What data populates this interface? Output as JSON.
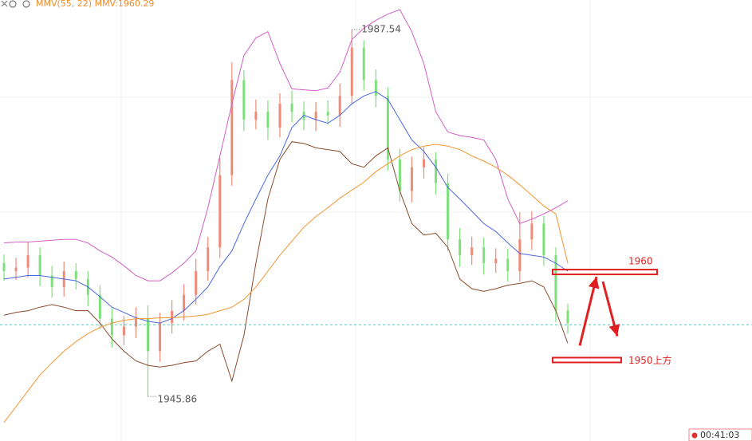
{
  "chart_data": {
    "type": "candlestick",
    "title": "MMV(55, 22) MMV:1960.29",
    "ylim": [
      1940.8,
      1990.9
    ],
    "candles": {
      "up_color": "#f08a78",
      "down_color": "#7de07a",
      "open": [
        1961.0,
        1960.1,
        1960.5,
        1961.9,
        1959.6,
        1958.3,
        1960.1,
        1959.2,
        1957.4,
        1954.7,
        1952.8,
        1953.8,
        1954.7,
        1951.0,
        1954.2,
        1955.6,
        1957.4,
        1960.1,
        1962.8,
        1971.0,
        1981.8,
        1977.3,
        1978.2,
        1976.4,
        1979.1,
        1978.2,
        1977.3,
        1978.2,
        1977.8,
        1980.0,
        1985.5,
        1981.8,
        1980.0,
        1972.8,
        1969.2,
        1971.9,
        1972.8,
        1970.1,
        1963.7,
        1961.9,
        1962.8,
        1961.0,
        1961.5,
        1960.1,
        1963.7,
        1965.5,
        1961.9,
        1955.6
      ],
      "high": [
        1962.0,
        1961.6,
        1963.4,
        1962.8,
        1960.7,
        1961.2,
        1961.0,
        1960.1,
        1958.5,
        1955.9,
        1955.0,
        1956.0,
        1956.2,
        1955.4,
        1956.8,
        1958.6,
        1961.5,
        1964.0,
        1973.0,
        1983.8,
        1982.9,
        1979.6,
        1979.5,
        1980.3,
        1980.6,
        1979.4,
        1979.3,
        1979.5,
        1981.4,
        1987.54,
        1986.3,
        1983.0,
        1981.0,
        1974.0,
        1973.1,
        1974.2,
        1973.6,
        1971.2,
        1965.0,
        1964.0,
        1963.9,
        1962.7,
        1962.6,
        1966.8,
        1966.9,
        1966.4,
        1962.8,
        1956.4
      ],
      "low": [
        1959.0,
        1959.1,
        1959.4,
        1958.4,
        1957.1,
        1957.2,
        1958.0,
        1956.1,
        1953.5,
        1951.4,
        1951.7,
        1952.5,
        1945.86,
        1949.8,
        1953.0,
        1954.5,
        1956.3,
        1959.0,
        1961.6,
        1969.8,
        1976.0,
        1976.2,
        1975.0,
        1975.3,
        1977.0,
        1976.1,
        1976.0,
        1976.7,
        1976.5,
        1979.0,
        1980.6,
        1978.7,
        1971.5,
        1968.0,
        1967.9,
        1970.6,
        1968.8,
        1962.4,
        1960.6,
        1960.8,
        1959.7,
        1959.9,
        1958.9,
        1958.9,
        1962.5,
        1960.7,
        1954.3,
        1953.0
      ],
      "close": [
        1960.1,
        1960.5,
        1961.9,
        1959.6,
        1958.3,
        1960.1,
        1959.2,
        1957.4,
        1954.7,
        1952.8,
        1953.8,
        1954.7,
        1951.0,
        1954.2,
        1955.6,
        1957.4,
        1960.1,
        1962.8,
        1971.0,
        1981.8,
        1977.3,
        1978.2,
        1976.4,
        1979.1,
        1978.2,
        1977.3,
        1978.2,
        1977.8,
        1980.0,
        1985.5,
        1981.8,
        1980.0,
        1972.8,
        1969.2,
        1971.9,
        1972.8,
        1970.1,
        1963.7,
        1961.9,
        1962.8,
        1961.0,
        1961.5,
        1960.1,
        1963.7,
        1965.5,
        1961.9,
        1955.6,
        1954.2
      ]
    },
    "series": [
      {
        "color": "#d35fc6",
        "values": [
          1963.3,
          1963.4,
          1963.4,
          1963.5,
          1963.6,
          1963.7,
          1963.7,
          1963.3,
          1962.4,
          1961.7,
          1960.7,
          1959.6,
          1959.0,
          1959.0,
          1959.9,
          1961.0,
          1962.4,
          1967.3,
          1973.2,
          1979.1,
          1984.6,
          1986.6,
          1987.3,
          1983.7,
          1980.8,
          1980.7,
          1980.6,
          1980.9,
          1982.7,
          1986.4,
          1987.7,
          1988.6,
          1989.3,
          1989.8,
          1987.3,
          1983.7,
          1978.2,
          1975.9,
          1975.5,
          1975.3,
          1975.0,
          1972.8,
          1968.3,
          1965.5,
          1966.0,
          1966.6,
          1967.3,
          1968.1
        ]
      },
      {
        "color": "#4a67e0",
        "values": [
          1959.2,
          1959.4,
          1959.6,
          1959.6,
          1959.4,
          1959.2,
          1959.0,
          1958.3,
          1957.2,
          1956.0,
          1955.4,
          1954.8,
          1954.4,
          1954.2,
          1954.7,
          1955.6,
          1956.9,
          1958.3,
          1960.6,
          1962.4,
          1965.5,
          1968.3,
          1971.0,
          1973.2,
          1976.4,
          1977.8,
          1977.3,
          1976.9,
          1977.8,
          1979.1,
          1980.0,
          1980.5,
          1979.6,
          1977.3,
          1975.0,
          1973.7,
          1971.9,
          1969.6,
          1968.3,
          1966.9,
          1965.5,
          1964.6,
          1963.3,
          1962.1,
          1961.9,
          1961.7,
          1961.0,
          1960.1
        ]
      },
      {
        "color": "#8b4a2b",
        "values": [
          1955.1,
          1955.4,
          1955.6,
          1956.0,
          1956.3,
          1956.0,
          1955.6,
          1955.6,
          1954.2,
          1952.4,
          1951.0,
          1949.9,
          1949.4,
          1949.2,
          1949.4,
          1949.7,
          1949.9,
          1951.0,
          1951.8,
          1947.6,
          1952.8,
          1961.0,
          1968.3,
          1972.8,
          1974.8,
          1974.6,
          1974.1,
          1973.9,
          1973.7,
          1972.3,
          1971.9,
          1973.2,
          1974.1,
          1969.2,
          1965.5,
          1964.2,
          1964.4,
          1962.8,
          1959.2,
          1958.1,
          1957.8,
          1958.1,
          1958.5,
          1958.7,
          1959.0,
          1958.3,
          1955.6,
          1951.9
        ]
      },
      {
        "color": "#f39530",
        "values": [
          1942.9,
          1944.7,
          1946.5,
          1948.3,
          1949.7,
          1951.0,
          1952.1,
          1953.0,
          1953.7,
          1954.2,
          1954.5,
          1954.7,
          1954.7,
          1954.8,
          1954.8,
          1954.9,
          1955.0,
          1955.2,
          1955.6,
          1956.0,
          1956.9,
          1958.3,
          1960.1,
          1961.9,
          1963.5,
          1965.1,
          1966.3,
          1967.3,
          1968.4,
          1969.3,
          1970.2,
          1971.4,
          1972.3,
          1973.2,
          1973.9,
          1974.3,
          1974.5,
          1974.3,
          1973.9,
          1973.2,
          1972.6,
          1971.9,
          1971.0,
          1969.9,
          1968.7,
          1967.5,
          1966.6,
          1961.0
        ]
      }
    ],
    "last_price": 1954.0,
    "annotations": [
      {
        "value": 1960,
        "label": "1960"
      },
      {
        "value": 1950,
        "label": "1950上方"
      }
    ],
    "annotation_color": "#e02020",
    "time": "00:41:03"
  }
}
